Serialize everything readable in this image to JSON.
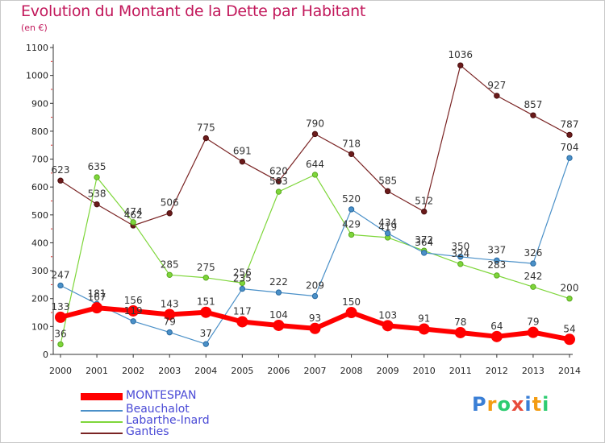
{
  "title": "Evolution du Montant de la Dette par Habitant",
  "subtitle": "(en €)",
  "logo": {
    "text": "Proxiti",
    "letter_colors": [
      "#3a7fd6",
      "#f39c12",
      "#2ecc71",
      "#e74c3c",
      "#3a7fd6",
      "#f39c12",
      "#2ecc71"
    ]
  },
  "chart_data": {
    "type": "line",
    "x": [
      "2000",
      "2001",
      "2002",
      "2003",
      "2004",
      "2005",
      "2006",
      "2007",
      "2008",
      "2009",
      "2010",
      "2011",
      "2012",
      "2013",
      "2014"
    ],
    "ylim": [
      0,
      1100
    ],
    "yticks": [
      "0",
      "100",
      "200",
      "300",
      "400",
      "500",
      "600",
      "700",
      "800",
      "900",
      "1000",
      "1100"
    ],
    "grid": false,
    "legend_position": "bottom",
    "series": [
      {
        "name": "MONTESPAN",
        "color": "#ff0000",
        "values": [
          133,
          167,
          156,
          143,
          151,
          117,
          104,
          93,
          150,
          103,
          91,
          78,
          64,
          79,
          54
        ],
        "labels": [
          "133",
          "167",
          "156",
          "143",
          "151",
          "117",
          "104",
          "93",
          "150",
          "103",
          "91",
          "78",
          "64",
          "79",
          "54"
        ]
      },
      {
        "name": "Beauchalot",
        "color": "#4a90c8",
        "values": [
          247,
          181,
          119,
          79,
          37,
          235,
          222,
          209,
          520,
          434,
          364,
          350,
          337,
          326,
          704
        ],
        "labels": [
          "247",
          "181",
          "119",
          "79",
          "37",
          "235",
          "222",
          "209",
          "520",
          "434",
          "364",
          "350",
          "337",
          "326",
          "704"
        ]
      },
      {
        "name": "Labarthe-Inard",
        "color": "#7ed63a",
        "values": [
          36,
          635,
          474,
          285,
          275,
          256,
          583,
          644,
          429,
          419,
          372,
          324,
          283,
          242,
          200
        ],
        "labels": [
          "36",
          "635",
          "474",
          "285",
          "275",
          "256",
          "583",
          "644",
          "429",
          "419",
          "372",
          "324",
          "283",
          "242",
          "200"
        ]
      },
      {
        "name": "Ganties",
        "color": "#7a2424",
        "values": [
          623,
          538,
          462,
          506,
          775,
          691,
          620,
          790,
          718,
          585,
          512,
          1036,
          927,
          857,
          787
        ],
        "labels": [
          "623",
          "538",
          "462",
          "506",
          "775",
          "691",
          "620",
          "790",
          "718",
          "585",
          "512",
          "1036",
          "927",
          "857",
          "787"
        ]
      }
    ]
  }
}
